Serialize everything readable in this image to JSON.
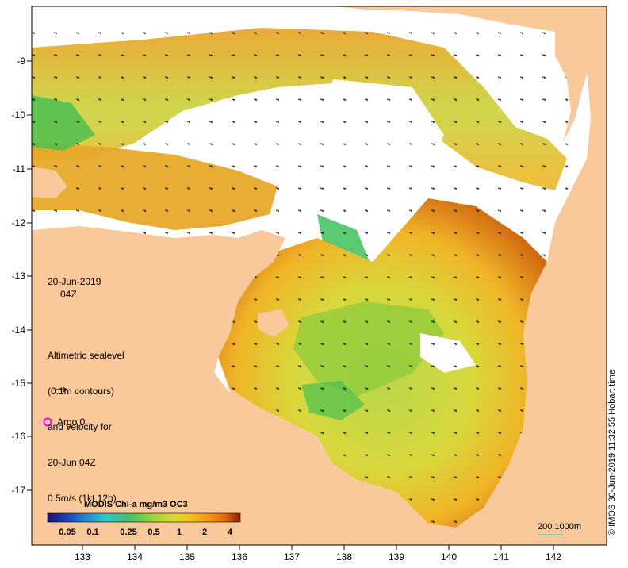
{
  "map": {
    "lat_ticks": [
      "-9",
      "-10",
      "-11",
      "-12",
      "-13",
      "-14",
      "-15",
      "-16",
      "-17"
    ],
    "lon_ticks": [
      "133",
      "134",
      "135",
      "136",
      "137",
      "138",
      "139",
      "140",
      "141",
      "142"
    ],
    "lat_range": [
      -17.7,
      -8.25
    ],
    "lon_range": [
      132.05,
      143.0
    ],
    "land_color": "#f9c89b",
    "ocean_missing_color": "#ffffff"
  },
  "annotations": {
    "date": "20-Jun-2019",
    "time": "04Z",
    "altimetry_lines": [
      "Altimetric sealevel",
      "(0.1m contours)",
      "and velocity for",
      "20-Jun 04Z",
      "0.5m/s (1kt 12h)"
    ],
    "argo_label": "Argo 0",
    "argo_color": "#ff00ff",
    "credit": "© IMOS 30-Jun-2019 11:32:55 Hobart time",
    "scale_label": "200  1000m",
    "scale_line_color": "#40e0d0"
  },
  "colorbar": {
    "title": "MODIS Chl-a mg/m3 OC3",
    "ticks": [
      "0.05",
      "0.1",
      "0.25",
      "0.5",
      "1",
      "2",
      "4"
    ],
    "colors": [
      "#1a1080",
      "#1f3fc0",
      "#1e8bd8",
      "#2ec8c8",
      "#3fbf6a",
      "#5ec33a",
      "#9ed23c",
      "#d9d932",
      "#f2c11e",
      "#f09a14",
      "#e06a0c",
      "#c8400a",
      "#8a2006"
    ]
  }
}
